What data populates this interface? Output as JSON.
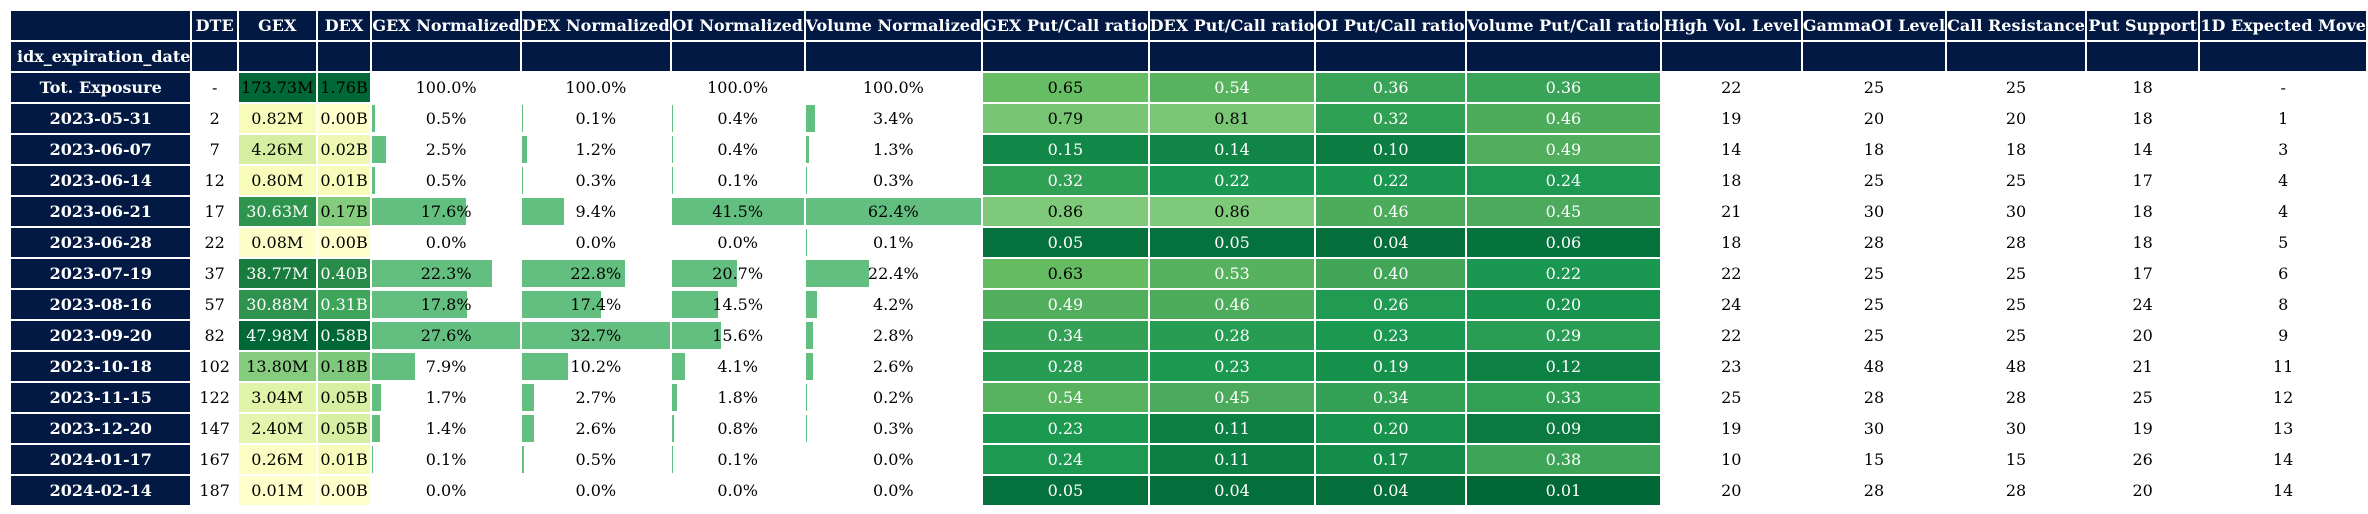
{
  "index_name": "idx_expiration_date",
  "columns": [
    "DTE",
    "GEX",
    "DEX",
    "GEX Normalized",
    "DEX Normalized",
    "OI Normalized",
    "Volume Normalized",
    "GEX Put/Call ratio",
    "DEX Put/Call ratio",
    "OI Put/Call ratio",
    "Volume Put/Call ratio",
    "High Vol. Level",
    "GammaOI Level",
    "Call Resistance",
    "Put Support",
    "1D Expected Move"
  ],
  "rows": [
    {
      "label": "Tot. Exposure",
      "dte": "-",
      "gex": "173.73M",
      "dex": "1.76B",
      "gex_norm": "100.0%",
      "dex_norm": "100.0%",
      "oi_norm": "100.0%",
      "vol_norm": "100.0%",
      "gex_pc": "0.65",
      "dex_pc": "0.54",
      "oi_pc": "0.36",
      "vol_pc": "0.36",
      "high_vol": "22",
      "gamma_oi": "25",
      "call_res": "25",
      "put_sup": "18",
      "exp_move": "-"
    },
    {
      "label": "2023-05-31",
      "dte": "2",
      "gex": "0.82M",
      "dex": "0.00B",
      "gex_norm": "0.5%",
      "dex_norm": "0.1%",
      "oi_norm": "0.4%",
      "vol_norm": "3.4%",
      "gex_pc": "0.79",
      "dex_pc": "0.81",
      "oi_pc": "0.32",
      "vol_pc": "0.46",
      "high_vol": "19",
      "gamma_oi": "20",
      "call_res": "20",
      "put_sup": "18",
      "exp_move": "1"
    },
    {
      "label": "2023-06-07",
      "dte": "7",
      "gex": "4.26M",
      "dex": "0.02B",
      "gex_norm": "2.5%",
      "dex_norm": "1.2%",
      "oi_norm": "0.4%",
      "vol_norm": "1.3%",
      "gex_pc": "0.15",
      "dex_pc": "0.14",
      "oi_pc": "0.10",
      "vol_pc": "0.49",
      "high_vol": "14",
      "gamma_oi": "18",
      "call_res": "18",
      "put_sup": "14",
      "exp_move": "3"
    },
    {
      "label": "2023-06-14",
      "dte": "12",
      "gex": "0.80M",
      "dex": "0.01B",
      "gex_norm": "0.5%",
      "dex_norm": "0.3%",
      "oi_norm": "0.1%",
      "vol_norm": "0.3%",
      "gex_pc": "0.32",
      "dex_pc": "0.22",
      "oi_pc": "0.22",
      "vol_pc": "0.24",
      "high_vol": "18",
      "gamma_oi": "25",
      "call_res": "25",
      "put_sup": "17",
      "exp_move": "4"
    },
    {
      "label": "2023-06-21",
      "dte": "17",
      "gex": "30.63M",
      "dex": "0.17B",
      "gex_norm": "17.6%",
      "dex_norm": "9.4%",
      "oi_norm": "41.5%",
      "vol_norm": "62.4%",
      "gex_pc": "0.86",
      "dex_pc": "0.86",
      "oi_pc": "0.46",
      "vol_pc": "0.45",
      "high_vol": "21",
      "gamma_oi": "30",
      "call_res": "30",
      "put_sup": "18",
      "exp_move": "4"
    },
    {
      "label": "2023-06-28",
      "dte": "22",
      "gex": "0.08M",
      "dex": "0.00B",
      "gex_norm": "0.0%",
      "dex_norm": "0.0%",
      "oi_norm": "0.0%",
      "vol_norm": "0.1%",
      "gex_pc": "0.05",
      "dex_pc": "0.05",
      "oi_pc": "0.04",
      "vol_pc": "0.06",
      "high_vol": "18",
      "gamma_oi": "28",
      "call_res": "28",
      "put_sup": "18",
      "exp_move": "5"
    },
    {
      "label": "2023-07-19",
      "dte": "37",
      "gex": "38.77M",
      "dex": "0.40B",
      "gex_norm": "22.3%",
      "dex_norm": "22.8%",
      "oi_norm": "20.7%",
      "vol_norm": "22.4%",
      "gex_pc": "0.63",
      "dex_pc": "0.53",
      "oi_pc": "0.40",
      "vol_pc": "0.22",
      "high_vol": "22",
      "gamma_oi": "25",
      "call_res": "25",
      "put_sup": "17",
      "exp_move": "6"
    },
    {
      "label": "2023-08-16",
      "dte": "57",
      "gex": "30.88M",
      "dex": "0.31B",
      "gex_norm": "17.8%",
      "dex_norm": "17.4%",
      "oi_norm": "14.5%",
      "vol_norm": "4.2%",
      "gex_pc": "0.49",
      "dex_pc": "0.46",
      "oi_pc": "0.26",
      "vol_pc": "0.20",
      "high_vol": "24",
      "gamma_oi": "25",
      "call_res": "25",
      "put_sup": "24",
      "exp_move": "8"
    },
    {
      "label": "2023-09-20",
      "dte": "82",
      "gex": "47.98M",
      "dex": "0.58B",
      "gex_norm": "27.6%",
      "dex_norm": "32.7%",
      "oi_norm": "15.6%",
      "vol_norm": "2.8%",
      "gex_pc": "0.34",
      "dex_pc": "0.28",
      "oi_pc": "0.23",
      "vol_pc": "0.29",
      "high_vol": "22",
      "gamma_oi": "25",
      "call_res": "25",
      "put_sup": "20",
      "exp_move": "9"
    },
    {
      "label": "2023-10-18",
      "dte": "102",
      "gex": "13.80M",
      "dex": "0.18B",
      "gex_norm": "7.9%",
      "dex_norm": "10.2%",
      "oi_norm": "4.1%",
      "vol_norm": "2.6%",
      "gex_pc": "0.28",
      "dex_pc": "0.23",
      "oi_pc": "0.19",
      "vol_pc": "0.12",
      "high_vol": "23",
      "gamma_oi": "48",
      "call_res": "48",
      "put_sup": "21",
      "exp_move": "11"
    },
    {
      "label": "2023-11-15",
      "dte": "122",
      "gex": "3.04M",
      "dex": "0.05B",
      "gex_norm": "1.7%",
      "dex_norm": "2.7%",
      "oi_norm": "1.8%",
      "vol_norm": "0.2%",
      "gex_pc": "0.54",
      "dex_pc": "0.45",
      "oi_pc": "0.34",
      "vol_pc": "0.33",
      "high_vol": "25",
      "gamma_oi": "28",
      "call_res": "28",
      "put_sup": "25",
      "exp_move": "12"
    },
    {
      "label": "2023-12-20",
      "dte": "147",
      "gex": "2.40M",
      "dex": "0.05B",
      "gex_norm": "1.4%",
      "dex_norm": "2.6%",
      "oi_norm": "0.8%",
      "vol_norm": "0.3%",
      "gex_pc": "0.23",
      "dex_pc": "0.11",
      "oi_pc": "0.20",
      "vol_pc": "0.09",
      "high_vol": "19",
      "gamma_oi": "30",
      "call_res": "30",
      "put_sup": "19",
      "exp_move": "13"
    },
    {
      "label": "2024-01-17",
      "dte": "167",
      "gex": "0.26M",
      "dex": "0.01B",
      "gex_norm": "0.1%",
      "dex_norm": "0.5%",
      "oi_norm": "0.1%",
      "vol_norm": "0.0%",
      "gex_pc": "0.24",
      "dex_pc": "0.11",
      "oi_pc": "0.17",
      "vol_pc": "0.38",
      "high_vol": "10",
      "gamma_oi": "15",
      "call_res": "15",
      "put_sup": "26",
      "exp_move": "14"
    },
    {
      "label": "2024-02-14",
      "dte": "187",
      "gex": "0.01M",
      "dex": "0.00B",
      "gex_norm": "0.0%",
      "dex_norm": "0.0%",
      "oi_norm": "0.0%",
      "vol_norm": "0.0%",
      "gex_pc": "0.05",
      "dex_pc": "0.04",
      "oi_pc": "0.04",
      "vol_pc": "0.01",
      "high_vol": "20",
      "gamma_oi": "28",
      "call_res": "28",
      "put_sup": "20",
      "exp_move": "14"
    }
  ],
  "colors": {
    "header_bg": "#021943",
    "header_text": "#ffffff",
    "bar_fill": "#63bf80",
    "gex_dex_scale": [
      "#ffffcc",
      "#f7fcb9",
      "#d9f0a3",
      "#addd8e",
      "#78c679",
      "#41ab5d",
      "#238443",
      "#006837"
    ],
    "ratio_scale": [
      "#006837",
      "#1a9850",
      "#4aa95b",
      "#66bd63",
      "#7fc97a"
    ]
  }
}
